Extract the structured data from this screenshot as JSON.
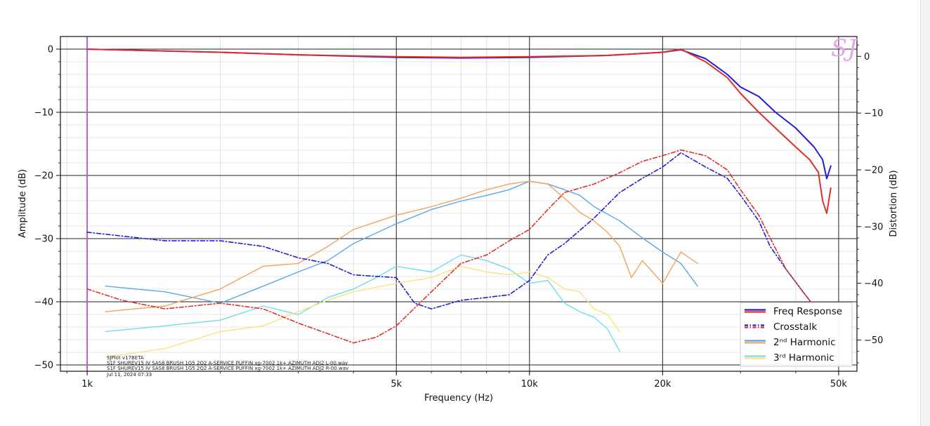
{
  "chart_data": {
    "type": "line",
    "xlabel": "Frequency (Hz)",
    "ylabel": "Amplitude (dB)",
    "ylabel_right": "Distortion (dB)",
    "x_scale": "log",
    "xlim": [
      870,
      55000
    ],
    "ylim": [
      -51,
      2
    ],
    "ylim_right": [
      -55.5,
      3.5
    ],
    "x_ticks": [
      {
        "value": 1000,
        "label": "1k"
      },
      {
        "value": 5000,
        "label": "5k"
      },
      {
        "value": 10000,
        "label": "10k"
      },
      {
        "value": 20000,
        "label": "20k"
      },
      {
        "value": 50000,
        "label": "50k"
      }
    ],
    "y_ticks": [
      {
        "value": 0,
        "label": "0"
      },
      {
        "value": -10,
        "label": "−10"
      },
      {
        "value": -20,
        "label": "−20"
      },
      {
        "value": -30,
        "label": "−30"
      },
      {
        "value": -40,
        "label": "−40"
      },
      {
        "value": -50,
        "label": "−50"
      }
    ],
    "y_ticks_right": [
      {
        "value": 0,
        "label": "0"
      },
      {
        "value": -10,
        "label": "−10"
      },
      {
        "value": -20,
        "label": "−20"
      },
      {
        "value": -30,
        "label": "−30"
      },
      {
        "value": -40,
        "label": "−40"
      },
      {
        "value": -50,
        "label": "−50"
      }
    ],
    "grid": true,
    "reference_line": {
      "x": 1000,
      "color": "#b455d6"
    },
    "logo": "SJ",
    "legend": {
      "placement": "lower-right",
      "entries": [
        {
          "label": "Freq Response",
          "colors": [
            "#1f1fd8",
            "#e0302a"
          ],
          "style": "solid"
        },
        {
          "label": "Crosstalk",
          "colors": [
            "#1f1fd8",
            "#e0302a"
          ],
          "style": "dashdot"
        },
        {
          "label": "2ⁿᵈ Harmonic",
          "colors": [
            "#5aa6e8",
            "#f2a35c"
          ],
          "style": "solid"
        },
        {
          "label": "3ʳᵈ Harmonic",
          "colors": [
            "#6fdcf2",
            "#fbe27a"
          ],
          "style": "solid"
        }
      ]
    },
    "info_lines": [
      "SJPlot v17BETA",
      "S1F SHUREV15 IV SAS8 BRUSH 1G5 2Q2 A-SERVICE PUFFIN xg-7002 1k+ AZIMUTH ADJ2 L-00.wav",
      "S1F SHUREV15 IV SAS8 BRUSH 1G5 2Q2 A-SERVICE PUFFIN xg-7002 1k+ AZIMUTH ADJ2 R-00.wav",
      "Jul 11, 2024 07:33"
    ],
    "series": [
      {
        "axis": "left",
        "color": "#1f1fd8",
        "style": "solid",
        "width": 2,
        "x": [
          1000,
          2000,
          3000,
          5000,
          7000,
          10000,
          15000,
          20000,
          22000,
          25000,
          28000,
          30000,
          33000,
          36000,
          40000,
          44000,
          46000,
          47000,
          48000
        ],
        "y": [
          0,
          -0.5,
          -0.9,
          -1.3,
          -1.4,
          -1.3,
          -1.0,
          -0.5,
          -0.1,
          -1.5,
          -4.0,
          -6.0,
          -7.5,
          -10.0,
          -12.5,
          -15.5,
          -17.5,
          -20.5,
          -18.5
        ]
      },
      {
        "axis": "left",
        "color": "#e0302a",
        "style": "solid",
        "width": 2,
        "x": [
          1000,
          2000,
          3000,
          5000,
          7000,
          10000,
          15000,
          20000,
          22000,
          25000,
          28000,
          30000,
          33000,
          36000,
          40000,
          43000,
          45000,
          46000,
          47000,
          48000
        ],
        "y": [
          0,
          -0.5,
          -0.9,
          -1.2,
          -1.3,
          -1.2,
          -1.0,
          -0.5,
          0,
          -2.0,
          -4.5,
          -7.0,
          -10.0,
          -12.5,
          -15.5,
          -17.5,
          -19.5,
          -24.0,
          -26.0,
          -22.0
        ]
      },
      {
        "axis": "right",
        "color": "#1f1fd8",
        "style": "dashdot",
        "width": 1.6,
        "x": [
          1000,
          1500,
          2000,
          2500,
          3000,
          3500,
          4000,
          5000,
          5500,
          6000,
          7000,
          8000,
          9000,
          10000,
          11000,
          12000,
          14000,
          16000,
          18000,
          20000,
          22000,
          25000,
          28000,
          30000,
          33000,
          35000,
          38000,
          42000,
          45000
        ],
        "y": [
          -31,
          -32.5,
          -32.5,
          -33.5,
          -35.5,
          -36.5,
          -38.5,
          -39.0,
          -43.5,
          -44.5,
          -43.0,
          -42.5,
          -42.0,
          -39.5,
          -35.0,
          -33.0,
          -28.5,
          -24.0,
          -21.5,
          -19.5,
          -17.0,
          -19.5,
          -21.5,
          -24.5,
          -29.0,
          -33.5,
          -37.5,
          -42.0,
          -45.0
        ]
      },
      {
        "axis": "right",
        "color": "#e0302a",
        "style": "dashdot",
        "width": 1.6,
        "x": [
          1000,
          1200,
          1500,
          2000,
          2500,
          3000,
          4000,
          4500,
          5000,
          6000,
          7000,
          8000,
          9000,
          10000,
          11000,
          12000,
          14000,
          16000,
          18000,
          20000,
          22000,
          25000,
          28000,
          30000,
          33000,
          35000,
          38000,
          42000,
          45000
        ],
        "y": [
          -41,
          -43.0,
          -44.5,
          -43.5,
          -44.5,
          -47.0,
          -50.5,
          -49.5,
          -47.5,
          -41.5,
          -36.5,
          -35.0,
          -32.5,
          -30.5,
          -27.0,
          -24.0,
          -22.5,
          -20.5,
          -18.5,
          -17.5,
          -16.5,
          -17.5,
          -20.0,
          -23.5,
          -28.0,
          -32.0,
          -37.5,
          -42.0,
          -45.0
        ]
      },
      {
        "axis": "right",
        "color": "#5aa6e8",
        "style": "solid",
        "width": 1.4,
        "x": [
          1100,
          1500,
          2000,
          2500,
          3000,
          3500,
          4000,
          5000,
          6000,
          7000,
          8000,
          9000,
          10000,
          11000,
          12000,
          13000,
          14000,
          16000,
          18000,
          20000,
          22000,
          24000
        ],
        "y": [
          -40.5,
          -41.5,
          -43.5,
          -40.5,
          -38.0,
          -36.0,
          -33.0,
          -29.5,
          -27.0,
          -25.5,
          -24.5,
          -23.5,
          -22.0,
          -22.5,
          -23.5,
          -24.5,
          -26.5,
          -29.0,
          -32.0,
          -34.5,
          -36.5,
          -40.5
        ]
      },
      {
        "axis": "right",
        "color": "#f2a35c",
        "style": "solid",
        "width": 1.4,
        "x": [
          1100,
          1500,
          2000,
          2500,
          3000,
          3500,
          4000,
          5000,
          6000,
          7000,
          8000,
          9000,
          10000,
          11000,
          12000,
          13000,
          14000,
          15000,
          16000,
          17000,
          18000,
          20000,
          22000,
          24000
        ],
        "y": [
          -45.0,
          -44.0,
          -41.0,
          -37.0,
          -36.5,
          -33.5,
          -30.5,
          -28.0,
          -26.5,
          -25.0,
          -23.5,
          -22.5,
          -22.0,
          -22.5,
          -25.0,
          -27.5,
          -29.0,
          -31.0,
          -33.5,
          -39.0,
          -36.0,
          -40.0,
          -34.5,
          -36.5
        ]
      },
      {
        "axis": "right",
        "color": "#6fdcf2",
        "style": "solid",
        "width": 1.4,
        "x": [
          1100,
          1500,
          2000,
          2500,
          3000,
          3500,
          4000,
          4500,
          5000,
          6000,
          7000,
          8000,
          9000,
          10000,
          11000,
          12000,
          13000,
          14000,
          15000,
          16000
        ],
        "y": [
          -48.5,
          -47.5,
          -46.5,
          -44.0,
          -45.5,
          -42.5,
          -41.0,
          -39.0,
          -37.0,
          -38.0,
          -35.0,
          -36.0,
          -37.5,
          -40.0,
          -39.5,
          -43.5,
          -45.0,
          -46.0,
          -48.0,
          -52.0
        ]
      },
      {
        "axis": "right",
        "color": "#fbe27a",
        "style": "solid",
        "width": 1.4,
        "x": [
          1100,
          1500,
          2000,
          2500,
          3000,
          3500,
          4000,
          5000,
          6000,
          7000,
          8000,
          9000,
          10000,
          11000,
          12000,
          13000,
          14000,
          15000,
          16000
        ],
        "y": [
          -53.0,
          -51.5,
          -48.5,
          -47.5,
          -45.0,
          -43.0,
          -41.5,
          -40.0,
          -39.0,
          -37.0,
          -38.0,
          -38.5,
          -38.0,
          -39.0,
          -41.0,
          -41.5,
          -44.5,
          -45.5,
          -48.5
        ]
      }
    ]
  }
}
